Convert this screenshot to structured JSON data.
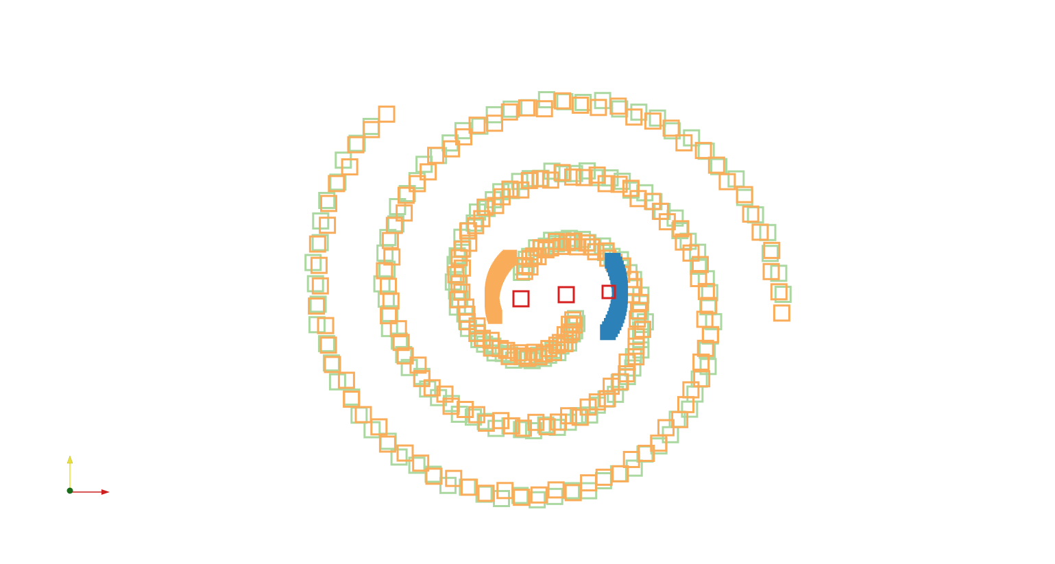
{
  "view": {
    "background": "#ffffff",
    "triad": {
      "icons": [
        "y-axis-arrow-icon",
        "x-axis-arrow-icon",
        "origin-dot-icon"
      ],
      "colors": {
        "x": "#cc1f1f",
        "y": "#e8e03c",
        "origin": "#1a6b1a"
      }
    }
  },
  "scene": {
    "glyph": "square-outline",
    "colors": {
      "orange": "#f9ac5a",
      "green": "#aad8a0",
      "blue": "#2c82b8",
      "red": "#d62020"
    },
    "series": [
      {
        "color_key": "orange",
        "marker_count": 120
      },
      {
        "color_key": "green",
        "marker_count": 110
      },
      {
        "color_key": "blue",
        "marker_count": 20
      },
      {
        "color_key": "red",
        "marker_count": 3
      }
    ]
  }
}
